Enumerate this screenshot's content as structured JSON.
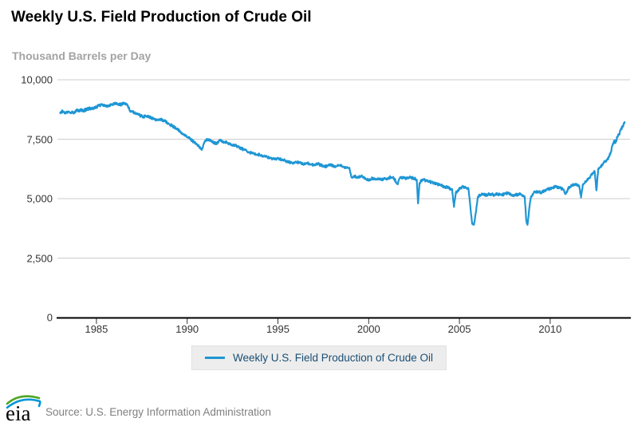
{
  "title": "Weekly U.S. Field Production of Crude Oil",
  "units_label": "Thousand Barrels per Day",
  "legend": {
    "label": "Weekly U.S. Field Production of Crude Oil"
  },
  "footer": {
    "logo_text": "eia",
    "source": "Source: U.S. Energy Information Administration"
  },
  "colors": {
    "line": "#1e96d4",
    "grid": "#cccccc",
    "axis": "#000000",
    "tick_label": "#333333",
    "subtitle": "#a3a3a3",
    "legend_bg": "#ededed",
    "legend_text": "#1a4e74",
    "source_text": "#808080",
    "logo_green": "#4ea525",
    "logo_blue": "#0096d7"
  },
  "chart_data": {
    "type": "line",
    "title": "Weekly U.S. Field Production of Crude Oil",
    "ylabel": "Thousand Barrels per Day",
    "xlabel": "",
    "grid": "horizontal",
    "legend_position": "bottom",
    "xlim": [
      1982.85,
      2014.4
    ],
    "ylim": [
      0,
      10000
    ],
    "x_ticks": [
      1985,
      1990,
      1995,
      2000,
      2005,
      2010
    ],
    "y_ticks": [
      {
        "value": 10000,
        "label": "10,000"
      },
      {
        "value": 7500,
        "label": "7,500"
      },
      {
        "value": 5000,
        "label": "5,000"
      },
      {
        "value": 2500,
        "label": "2,500"
      },
      {
        "value": 0,
        "label": "0"
      }
    ],
    "series": [
      {
        "name": "Weekly U.S. Field Production of Crude Oil",
        "color": "#1e96d4",
        "units": "thousand barrels per day",
        "points": [
          [
            1983.0,
            8620
          ],
          [
            1983.15,
            8680
          ],
          [
            1983.3,
            8600
          ],
          [
            1983.5,
            8650
          ],
          [
            1983.7,
            8620
          ],
          [
            1983.9,
            8700
          ],
          [
            1984.1,
            8720
          ],
          [
            1984.3,
            8700
          ],
          [
            1984.5,
            8780
          ],
          [
            1984.7,
            8800
          ],
          [
            1984.9,
            8820
          ],
          [
            1985.1,
            8900
          ],
          [
            1985.3,
            8950
          ],
          [
            1985.5,
            8900
          ],
          [
            1985.7,
            8920
          ],
          [
            1985.9,
            8980
          ],
          [
            1986.1,
            9000
          ],
          [
            1986.3,
            8950
          ],
          [
            1986.5,
            9000
          ],
          [
            1986.7,
            8950
          ],
          [
            1986.85,
            8700
          ],
          [
            1987.0,
            8650
          ],
          [
            1987.2,
            8550
          ],
          [
            1987.4,
            8500
          ],
          [
            1987.6,
            8450
          ],
          [
            1987.8,
            8480
          ],
          [
            1988.0,
            8400
          ],
          [
            1988.2,
            8350
          ],
          [
            1988.4,
            8300
          ],
          [
            1988.6,
            8320
          ],
          [
            1988.8,
            8250
          ],
          [
            1989.0,
            8150
          ],
          [
            1989.2,
            8050
          ],
          [
            1989.4,
            7950
          ],
          [
            1989.6,
            7850
          ],
          [
            1989.8,
            7700
          ],
          [
            1990.0,
            7600
          ],
          [
            1990.2,
            7500
          ],
          [
            1990.4,
            7350
          ],
          [
            1990.6,
            7250
          ],
          [
            1990.8,
            7050
          ],
          [
            1990.9,
            7300
          ],
          [
            1991.0,
            7450
          ],
          [
            1991.2,
            7500
          ],
          [
            1991.4,
            7400
          ],
          [
            1991.6,
            7300
          ],
          [
            1991.8,
            7450
          ],
          [
            1992.0,
            7400
          ],
          [
            1992.2,
            7350
          ],
          [
            1992.4,
            7300
          ],
          [
            1992.6,
            7250
          ],
          [
            1992.8,
            7200
          ],
          [
            1993.0,
            7100
          ],
          [
            1993.2,
            7050
          ],
          [
            1993.4,
            6950
          ],
          [
            1993.6,
            6900
          ],
          [
            1993.8,
            6850
          ],
          [
            1994.0,
            6850
          ],
          [
            1994.2,
            6800
          ],
          [
            1994.4,
            6750
          ],
          [
            1994.6,
            6700
          ],
          [
            1994.8,
            6650
          ],
          [
            1995.0,
            6700
          ],
          [
            1995.2,
            6650
          ],
          [
            1995.4,
            6600
          ],
          [
            1995.6,
            6550
          ],
          [
            1995.8,
            6500
          ],
          [
            1996.0,
            6550
          ],
          [
            1996.2,
            6500
          ],
          [
            1996.4,
            6450
          ],
          [
            1996.6,
            6500
          ],
          [
            1996.8,
            6450
          ],
          [
            1997.0,
            6400
          ],
          [
            1997.2,
            6450
          ],
          [
            1997.4,
            6400
          ],
          [
            1997.6,
            6350
          ],
          [
            1997.8,
            6400
          ],
          [
            1998.0,
            6400
          ],
          [
            1998.2,
            6350
          ],
          [
            1998.4,
            6400
          ],
          [
            1998.6,
            6350
          ],
          [
            1998.8,
            6300
          ],
          [
            1998.95,
            6250
          ],
          [
            1999.05,
            5900
          ],
          [
            1999.2,
            5950
          ],
          [
            1999.4,
            5900
          ],
          [
            1999.6,
            5950
          ],
          [
            1999.8,
            5850
          ],
          [
            2000.0,
            5800
          ],
          [
            2000.2,
            5850
          ],
          [
            2000.4,
            5800
          ],
          [
            2000.6,
            5850
          ],
          [
            2000.8,
            5800
          ],
          [
            2001.0,
            5850
          ],
          [
            2001.2,
            5900
          ],
          [
            2001.4,
            5850
          ],
          [
            2001.6,
            5600
          ],
          [
            2001.7,
            5850
          ],
          [
            2001.9,
            5900
          ],
          [
            2002.1,
            5850
          ],
          [
            2002.3,
            5900
          ],
          [
            2002.5,
            5850
          ],
          [
            2002.65,
            5800
          ],
          [
            2002.72,
            4800
          ],
          [
            2002.8,
            5650
          ],
          [
            2002.9,
            5750
          ],
          [
            2003.0,
            5800
          ],
          [
            2003.2,
            5750
          ],
          [
            2003.4,
            5700
          ],
          [
            2003.6,
            5650
          ],
          [
            2003.8,
            5600
          ],
          [
            2004.0,
            5550
          ],
          [
            2004.2,
            5500
          ],
          [
            2004.4,
            5450
          ],
          [
            2004.6,
            5400
          ],
          [
            2004.7,
            4650
          ],
          [
            2004.8,
            5250
          ],
          [
            2004.9,
            5350
          ],
          [
            2005.0,
            5400
          ],
          [
            2005.2,
            5500
          ],
          [
            2005.4,
            5450
          ],
          [
            2005.5,
            5400
          ],
          [
            2005.6,
            4700
          ],
          [
            2005.7,
            3950
          ],
          [
            2005.8,
            3900
          ],
          [
            2005.9,
            4400
          ],
          [
            2006.0,
            5000
          ],
          [
            2006.1,
            5150
          ],
          [
            2006.3,
            5200
          ],
          [
            2006.5,
            5150
          ],
          [
            2006.7,
            5200
          ],
          [
            2006.9,
            5150
          ],
          [
            2007.1,
            5200
          ],
          [
            2007.3,
            5150
          ],
          [
            2007.5,
            5200
          ],
          [
            2007.7,
            5250
          ],
          [
            2007.9,
            5150
          ],
          [
            2008.1,
            5150
          ],
          [
            2008.3,
            5200
          ],
          [
            2008.5,
            5150
          ],
          [
            2008.6,
            5050
          ],
          [
            2008.68,
            4100
          ],
          [
            2008.75,
            3900
          ],
          [
            2008.85,
            4600
          ],
          [
            2008.95,
            5100
          ],
          [
            2009.1,
            5250
          ],
          [
            2009.3,
            5300
          ],
          [
            2009.5,
            5250
          ],
          [
            2009.7,
            5350
          ],
          [
            2009.9,
            5400
          ],
          [
            2010.1,
            5450
          ],
          [
            2010.3,
            5500
          ],
          [
            2010.5,
            5450
          ],
          [
            2010.7,
            5400
          ],
          [
            2010.85,
            5200
          ],
          [
            2011.0,
            5450
          ],
          [
            2011.2,
            5550
          ],
          [
            2011.4,
            5600
          ],
          [
            2011.6,
            5550
          ],
          [
            2011.7,
            5050
          ],
          [
            2011.8,
            5600
          ],
          [
            2011.95,
            5700
          ],
          [
            2012.1,
            5850
          ],
          [
            2012.3,
            6000
          ],
          [
            2012.45,
            6150
          ],
          [
            2012.55,
            5350
          ],
          [
            2012.65,
            6250
          ],
          [
            2012.8,
            6350
          ],
          [
            2012.95,
            6500
          ],
          [
            2013.1,
            6600
          ],
          [
            2013.25,
            6750
          ],
          [
            2013.35,
            6950
          ],
          [
            2013.45,
            7300
          ],
          [
            2013.55,
            7450
          ],
          [
            2013.6,
            7350
          ],
          [
            2013.7,
            7600
          ],
          [
            2013.8,
            7700
          ],
          [
            2013.9,
            7900
          ],
          [
            2014.0,
            8050
          ],
          [
            2014.1,
            8220
          ]
        ]
      }
    ]
  }
}
